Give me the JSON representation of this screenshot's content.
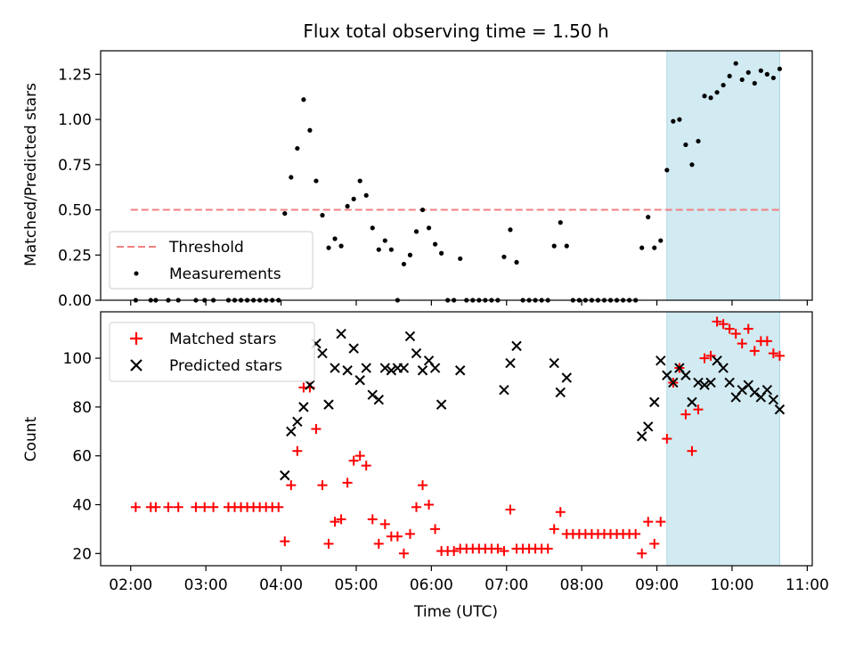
{
  "chart_data": [
    {
      "type": "scatter",
      "title": "Flux total observing time = 1.50 h",
      "xlabel": "",
      "ylabel": "Matched/Predicted stars",
      "ylim": [
        0,
        1.38
      ],
      "yticks": [
        "0.00",
        "0.25",
        "0.50",
        "0.75",
        "1.00",
        "1.25"
      ],
      "highlight_span": {
        "from": "09:08",
        "to": "10:38",
        "color": "#add8e6"
      },
      "threshold": {
        "name": "Threshold",
        "value": 0.5,
        "from": "02:00",
        "to": "10:38",
        "color": "#f08080"
      },
      "legend": {
        "placement": "lower-left",
        "entries": [
          "Threshold",
          "Measurements"
        ]
      },
      "series": [
        {
          "name": "Measurements",
          "color": "#000000",
          "points": [
            [
              "02:04",
              0
            ],
            [
              "02:16",
              0
            ],
            [
              "02:20",
              0
            ],
            [
              "02:30",
              0
            ],
            [
              "02:38",
              0
            ],
            [
              "02:52",
              0
            ],
            [
              "02:59",
              0
            ],
            [
              "03:06",
              0
            ],
            [
              "03:18",
              0
            ],
            [
              "03:23",
              0
            ],
            [
              "03:28",
              0
            ],
            [
              "03:33",
              0
            ],
            [
              "03:38",
              0
            ],
            [
              "03:43",
              0
            ],
            [
              "03:48",
              0
            ],
            [
              "03:53",
              0
            ],
            [
              "03:58",
              0
            ],
            [
              "04:03",
              0.48
            ],
            [
              "04:08",
              0.68
            ],
            [
              "04:13",
              0.84
            ],
            [
              "04:18",
              1.11
            ],
            [
              "04:23",
              0.94
            ],
            [
              "04:28",
              0.66
            ],
            [
              "04:33",
              0.47
            ],
            [
              "04:38",
              0.29
            ],
            [
              "04:43",
              0.34
            ],
            [
              "04:48",
              0.3
            ],
            [
              "04:53",
              0.52
            ],
            [
              "04:58",
              0.56
            ],
            [
              "05:03",
              0.66
            ],
            [
              "05:08",
              0.58
            ],
            [
              "05:13",
              0.4
            ],
            [
              "05:18",
              0.28
            ],
            [
              "05:23",
              0.33
            ],
            [
              "05:28",
              0.28
            ],
            [
              "05:33",
              0
            ],
            [
              "05:38",
              0.2
            ],
            [
              "05:43",
              0.25
            ],
            [
              "05:48",
              0.38
            ],
            [
              "05:53",
              0.5
            ],
            [
              "05:58",
              0.4
            ],
            [
              "06:03",
              0.31
            ],
            [
              "06:08",
              0.26
            ],
            [
              "06:13",
              0
            ],
            [
              "06:18",
              0
            ],
            [
              "06:23",
              0.23
            ],
            [
              "06:28",
              0
            ],
            [
              "06:33",
              0
            ],
            [
              "06:38",
              0
            ],
            [
              "06:43",
              0
            ],
            [
              "06:48",
              0
            ],
            [
              "06:53",
              0
            ],
            [
              "06:58",
              0.24
            ],
            [
              "07:03",
              0.39
            ],
            [
              "07:08",
              0.21
            ],
            [
              "07:13",
              0
            ],
            [
              "07:18",
              0
            ],
            [
              "07:23",
              0
            ],
            [
              "07:28",
              0
            ],
            [
              "07:33",
              0
            ],
            [
              "07:38",
              0.3
            ],
            [
              "07:43",
              0.43
            ],
            [
              "07:48",
              0.3
            ],
            [
              "07:53",
              0
            ],
            [
              "07:58",
              0
            ],
            [
              "08:03",
              0
            ],
            [
              "08:08",
              0
            ],
            [
              "08:13",
              0
            ],
            [
              "08:18",
              0
            ],
            [
              "08:23",
              0
            ],
            [
              "08:28",
              0
            ],
            [
              "08:33",
              0
            ],
            [
              "08:38",
              0
            ],
            [
              "08:43",
              0
            ],
            [
              "08:48",
              0.29
            ],
            [
              "08:53",
              0.46
            ],
            [
              "08:58",
              0.29
            ],
            [
              "09:03",
              0.33
            ],
            [
              "09:08",
              0.72
            ],
            [
              "09:13",
              0.99
            ],
            [
              "09:18",
              1.0
            ],
            [
              "09:23",
              0.86
            ],
            [
              "09:28",
              0.75
            ],
            [
              "09:33",
              0.88
            ],
            [
              "09:38",
              1.13
            ],
            [
              "09:43",
              1.12
            ],
            [
              "09:48",
              1.15
            ],
            [
              "09:53",
              1.19
            ],
            [
              "09:58",
              1.24
            ],
            [
              "10:03",
              1.31
            ],
            [
              "10:08",
              1.22
            ],
            [
              "10:13",
              1.26
            ],
            [
              "10:18",
              1.2
            ],
            [
              "10:23",
              1.27
            ],
            [
              "10:28",
              1.25
            ],
            [
              "10:33",
              1.23
            ],
            [
              "10:38",
              1.28
            ]
          ]
        }
      ]
    },
    {
      "type": "scatter",
      "title": "",
      "xlabel": "Time (UTC)",
      "ylabel": "Count",
      "ylim": [
        15,
        119
      ],
      "yticks": [
        "20",
        "40",
        "60",
        "80",
        "100"
      ],
      "xticks": [
        "02:00",
        "03:00",
        "04:00",
        "05:00",
        "06:00",
        "07:00",
        "08:00",
        "09:00",
        "10:00",
        "11:00"
      ],
      "xlim": [
        "01:36",
        "11:04"
      ],
      "highlight_span": {
        "from": "09:08",
        "to": "10:38",
        "color": "#add8e6"
      },
      "legend": {
        "placement": "top-left",
        "entries": [
          "Matched stars",
          "Predicted stars"
        ]
      },
      "series": [
        {
          "name": "Matched stars",
          "color": "#ff0000",
          "marker": "plus",
          "points": [
            [
              "02:04",
              39
            ],
            [
              "02:16",
              39
            ],
            [
              "02:20",
              39
            ],
            [
              "02:30",
              39
            ],
            [
              "02:38",
              39
            ],
            [
              "02:52",
              39
            ],
            [
              "02:59",
              39
            ],
            [
              "03:06",
              39
            ],
            [
              "03:18",
              39
            ],
            [
              "03:23",
              39
            ],
            [
              "03:28",
              39
            ],
            [
              "03:33",
              39
            ],
            [
              "03:38",
              39
            ],
            [
              "03:43",
              39
            ],
            [
              "03:48",
              39
            ],
            [
              "03:53",
              39
            ],
            [
              "03:58",
              39
            ],
            [
              "04:03",
              25
            ],
            [
              "04:08",
              48
            ],
            [
              "04:13",
              62
            ],
            [
              "04:18",
              88
            ],
            [
              "04:23",
              88
            ],
            [
              "04:28",
              71
            ],
            [
              "04:33",
              48
            ],
            [
              "04:38",
              24
            ],
            [
              "04:43",
              33
            ],
            [
              "04:48",
              34
            ],
            [
              "04:53",
              49
            ],
            [
              "04:58",
              58
            ],
            [
              "05:03",
              60
            ],
            [
              "05:08",
              56
            ],
            [
              "05:13",
              34
            ],
            [
              "05:18",
              24
            ],
            [
              "05:23",
              32
            ],
            [
              "05:28",
              27
            ],
            [
              "05:33",
              27
            ],
            [
              "05:38",
              20
            ],
            [
              "05:43",
              28
            ],
            [
              "05:48",
              39
            ],
            [
              "05:53",
              48
            ],
            [
              "05:58",
              40
            ],
            [
              "06:03",
              30
            ],
            [
              "06:08",
              21
            ],
            [
              "06:13",
              21
            ],
            [
              "06:18",
              21
            ],
            [
              "06:23",
              22
            ],
            [
              "06:28",
              22
            ],
            [
              "06:33",
              22
            ],
            [
              "06:38",
              22
            ],
            [
              "06:43",
              22
            ],
            [
              "06:48",
              22
            ],
            [
              "06:53",
              22
            ],
            [
              "06:58",
              21
            ],
            [
              "07:03",
              38
            ],
            [
              "07:08",
              22
            ],
            [
              "07:13",
              22
            ],
            [
              "07:18",
              22
            ],
            [
              "07:23",
              22
            ],
            [
              "07:28",
              22
            ],
            [
              "07:33",
              22
            ],
            [
              "07:38",
              30
            ],
            [
              "07:43",
              37
            ],
            [
              "07:48",
              28
            ],
            [
              "07:53",
              28
            ],
            [
              "07:58",
              28
            ],
            [
              "08:03",
              28
            ],
            [
              "08:08",
              28
            ],
            [
              "08:13",
              28
            ],
            [
              "08:18",
              28
            ],
            [
              "08:23",
              28
            ],
            [
              "08:28",
              28
            ],
            [
              "08:33",
              28
            ],
            [
              "08:38",
              28
            ],
            [
              "08:43",
              28
            ],
            [
              "08:48",
              20
            ],
            [
              "08:53",
              33
            ],
            [
              "08:58",
              24
            ],
            [
              "09:03",
              33
            ],
            [
              "09:08",
              67
            ],
            [
              "09:13",
              90
            ],
            [
              "09:18",
              96
            ],
            [
              "09:23",
              77
            ],
            [
              "09:28",
              62
            ],
            [
              "09:33",
              79
            ],
            [
              "09:38",
              100
            ],
            [
              "09:43",
              101
            ],
            [
              "09:48",
              115
            ],
            [
              "09:53",
              114
            ],
            [
              "09:58",
              112
            ],
            [
              "10:03",
              110
            ],
            [
              "10:08",
              106
            ],
            [
              "10:13",
              112
            ],
            [
              "10:18",
              103
            ],
            [
              "10:23",
              107
            ],
            [
              "10:28",
              107
            ],
            [
              "10:33",
              102
            ],
            [
              "10:38",
              101
            ]
          ]
        },
        {
          "name": "Predicted stars",
          "color": "#000000",
          "marker": "x",
          "points": [
            [
              "04:03",
              52
            ],
            [
              "04:08",
              70
            ],
            [
              "04:13",
              74
            ],
            [
              "04:18",
              80
            ],
            [
              "04:23",
              89
            ],
            [
              "04:28",
              106
            ],
            [
              "04:33",
              102
            ],
            [
              "04:38",
              81
            ],
            [
              "04:43",
              96
            ],
            [
              "04:48",
              110
            ],
            [
              "04:53",
              95
            ],
            [
              "04:58",
              104
            ],
            [
              "05:03",
              91
            ],
            [
              "05:08",
              96
            ],
            [
              "05:13",
              85
            ],
            [
              "05:18",
              83
            ],
            [
              "05:23",
              96
            ],
            [
              "05:28",
              95
            ],
            [
              "05:33",
              96
            ],
            [
              "05:38",
              96
            ],
            [
              "05:43",
              109
            ],
            [
              "05:48",
              102
            ],
            [
              "05:53",
              95
            ],
            [
              "05:58",
              99
            ],
            [
              "06:03",
              96
            ],
            [
              "06:08",
              81
            ],
            [
              "06:23",
              95
            ],
            [
              "06:58",
              87
            ],
            [
              "07:03",
              98
            ],
            [
              "07:08",
              105
            ],
            [
              "07:38",
              98
            ],
            [
              "07:43",
              86
            ],
            [
              "07:48",
              92
            ],
            [
              "08:48",
              68
            ],
            [
              "08:53",
              72
            ],
            [
              "08:58",
              82
            ],
            [
              "09:03",
              99
            ],
            [
              "09:08",
              93
            ],
            [
              "09:13",
              90
            ],
            [
              "09:18",
              96
            ],
            [
              "09:23",
              93
            ],
            [
              "09:28",
              82
            ],
            [
              "09:33",
              90
            ],
            [
              "09:38",
              89
            ],
            [
              "09:43",
              90
            ],
            [
              "09:48",
              99
            ],
            [
              "09:53",
              96
            ],
            [
              "09:58",
              90
            ],
            [
              "10:03",
              84
            ],
            [
              "10:08",
              87
            ],
            [
              "10:13",
              89
            ],
            [
              "10:18",
              86
            ],
            [
              "10:23",
              84
            ],
            [
              "10:28",
              87
            ],
            [
              "10:33",
              83
            ],
            [
              "10:38",
              79
            ]
          ]
        }
      ]
    }
  ]
}
